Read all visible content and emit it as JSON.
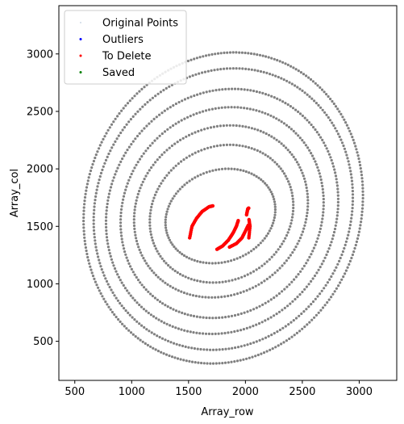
{
  "chart_data": {
    "type": "scatter",
    "xlabel": "Array_row",
    "ylabel": "Array_col",
    "xlim": [
      360,
      3330
    ],
    "ylim": [
      160,
      3420
    ],
    "x_ticks": [
      500,
      1000,
      1500,
      2000,
      2500,
      3000
    ],
    "y_ticks": [
      500,
      1000,
      1500,
      2000,
      2500,
      3000
    ],
    "grid": false,
    "legend_position": "top-left",
    "series": [
      {
        "name": "Original Points",
        "color": "#808080",
        "shape": "concentric spiral rings",
        "center": [
          1810,
          1640
        ],
        "rings": [
          {
            "x_min": 1290,
            "x_max": 2270,
            "y_min": 1180,
            "y_max": 2000
          },
          {
            "x_min": 1150,
            "x_max": 2430,
            "y_min": 1010,
            "y_max": 2210
          },
          {
            "x_min": 1010,
            "x_max": 2560,
            "y_min": 880,
            "y_max": 2380
          },
          {
            "x_min": 890,
            "x_max": 2700,
            "y_min": 700,
            "y_max": 2540
          },
          {
            "x_min": 760,
            "x_max": 2830,
            "y_min": 560,
            "y_max": 2700
          },
          {
            "x_min": 650,
            "x_max": 2960,
            "y_min": 420,
            "y_max": 2880
          },
          {
            "x_min": 560,
            "x_max": 3050,
            "y_min": 300,
            "y_max": 3020
          }
        ]
      },
      {
        "name": "Outliers",
        "color": "#0000ff",
        "x": [],
        "y": []
      },
      {
        "name": "To Delete",
        "color": "#ff0000",
        "arcs": [
          {
            "x": [
              1510,
              1530,
              1570,
              1620,
              1680,
              1720
            ],
            "y": [
              1400,
              1500,
              1570,
              1630,
              1670,
              1680
            ]
          },
          {
            "x": [
              1750,
              1800,
              1850,
              1890,
              1920,
              1940
            ],
            "y": [
              1300,
              1330,
              1380,
              1440,
              1500,
              1560
            ]
          },
          {
            "x": [
              1860,
              1920,
              1970,
              2000,
              2030
            ],
            "y": [
              1320,
              1350,
              1400,
              1460,
              1520
            ]
          },
          {
            "x": [
              2030,
              2040,
              2030
            ],
            "y": [
              1400,
              1500,
              1570
            ]
          },
          {
            "x": [
              2010,
              2020,
              2030
            ],
            "y": [
              1600,
              1650,
              1660
            ]
          }
        ]
      },
      {
        "name": "Saved",
        "color": "#008000",
        "x": [],
        "y": []
      }
    ]
  }
}
